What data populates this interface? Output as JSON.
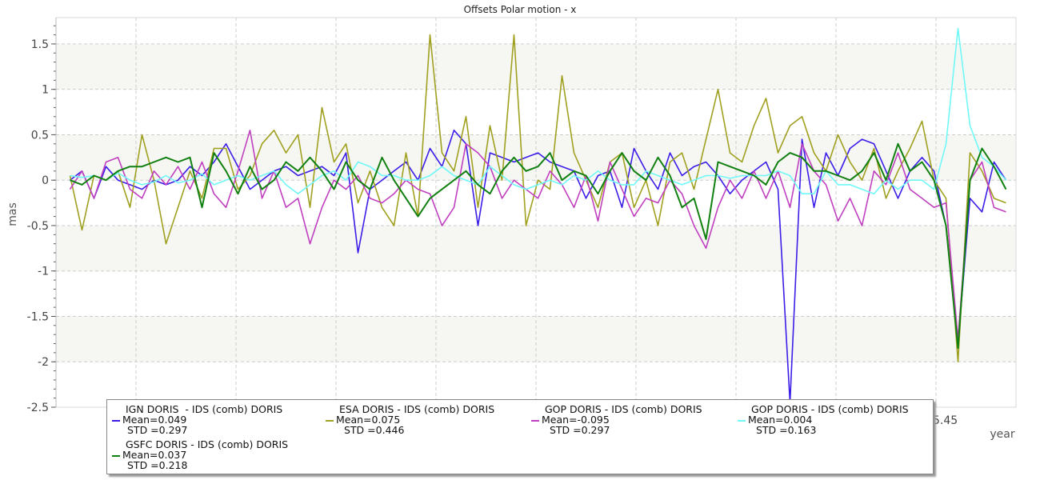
{
  "chart_data": {
    "type": "line",
    "title": "Offsets Polar motion - x",
    "xlabel": "year",
    "ylabel": "mas",
    "xlim": [
      2015.01,
      2015.49
    ],
    "ylim": [
      -2.5,
      1.79
    ],
    "grid": true,
    "legend_position": "bottom",
    "y_ticks": [
      "1.5",
      "1",
      "0.5",
      "0",
      "-0.5",
      "-1",
      "-1.5",
      "-2",
      "-2.5"
    ],
    "x_ticks_visible": [
      "5.45"
    ],
    "x": [
      2015.017,
      2015.023,
      2015.029,
      2015.035,
      2015.041,
      2015.047,
      2015.053,
      2015.059,
      2015.065,
      2015.071,
      2015.077,
      2015.083,
      2015.089,
      2015.095,
      2015.101,
      2015.107,
      2015.113,
      2015.119,
      2015.125,
      2015.131,
      2015.137,
      2015.143,
      2015.149,
      2015.155,
      2015.161,
      2015.167,
      2015.173,
      2015.179,
      2015.185,
      2015.191,
      2015.197,
      2015.203,
      2015.209,
      2015.215,
      2015.221,
      2015.227,
      2015.233,
      2015.239,
      2015.245,
      2015.251,
      2015.257,
      2015.263,
      2015.269,
      2015.275,
      2015.281,
      2015.287,
      2015.293,
      2015.299,
      2015.305,
      2015.311,
      2015.317,
      2015.323,
      2015.329,
      2015.335,
      2015.341,
      2015.347,
      2015.353,
      2015.359,
      2015.365,
      2015.371,
      2015.377,
      2015.383,
      2015.389,
      2015.395,
      2015.401,
      2015.407,
      2015.413,
      2015.419,
      2015.425,
      2015.431,
      2015.437,
      2015.443,
      2015.449,
      2015.455,
      2015.461,
      2015.467,
      2015.473,
      2015.479,
      2015.485
    ],
    "series": [
      {
        "name": "IGN DORIS  - IDS (comb) DORIS",
        "mean": "Mean=0.049",
        "std": "STD =0.297",
        "color": "#3a1ee8",
        "values": [
          0,
          0.1,
          -0.2,
          0.15,
          0,
          -0.05,
          -0.1,
          0,
          -0.05,
          0,
          0.15,
          0.05,
          0.2,
          0.4,
          0.15,
          -0.1,
          0,
          0.1,
          0.15,
          0.05,
          0.1,
          0.15,
          0.05,
          0.3,
          -0.8,
          -0.1,
          0,
          0.1,
          0.2,
          0,
          0.35,
          0.15,
          0.55,
          0.4,
          -0.5,
          0.3,
          0.25,
          0.2,
          0.25,
          0.3,
          0.2,
          0.15,
          0.1,
          -0.2,
          0.05,
          0.1,
          -0.3,
          0.35,
          0.1,
          -0.1,
          0.3,
          0.05,
          0.15,
          0.2,
          0.05,
          -0.15,
          0,
          0.1,
          0.2,
          -0.1,
          -2.45,
          0.45,
          -0.3,
          0.3,
          0.05,
          0.35,
          0.45,
          0.4,
          0.1,
          -0.2,
          0.1,
          0.25,
          0.1,
          -0.5,
          -1.8,
          -0.2,
          -0.35,
          0.2,
          0
        ]
      },
      {
        "name": "ESA DORIS - IDS (comb) DORIS",
        "mean": "Mean=0.075",
        "std": " STD =0.446",
        "color": "#a0a020",
        "values": [
          0.05,
          -0.55,
          0.05,
          0,
          0.1,
          -0.3,
          0.5,
          0,
          -0.7,
          -0.3,
          0.1,
          -0.2,
          0.35,
          0.35,
          -0.1,
          0.05,
          0.4,
          0.55,
          0.3,
          0.5,
          -0.3,
          0.8,
          0.2,
          0.4,
          -0.25,
          0.1,
          -0.3,
          -0.5,
          0.3,
          -0.4,
          1.6,
          0.3,
          0.1,
          0.7,
          -0.3,
          0.6,
          0,
          1.6,
          -0.5,
          0,
          -0.1,
          1.15,
          0.3,
          0,
          -0.3,
          0.2,
          0.3,
          -0.3,
          0,
          -0.5,
          0.2,
          0.3,
          -0.1,
          0.45,
          1,
          0.3,
          0.2,
          0.6,
          0.9,
          0.3,
          0.6,
          0.7,
          0.3,
          0.1,
          0.5,
          0.2,
          0,
          0.35,
          -0.2,
          0.1,
          0.35,
          0.65,
          0,
          -0.2,
          -2,
          0.3,
          0.1,
          -0.2,
          -0.25
        ]
      },
      {
        "name": "GOP DORIS - IDS (comb) DORIS",
        "mean": "Mean=-0.095",
        "std": " STD =0.297",
        "color": "#c040c0",
        "values": [
          -0.1,
          0.1,
          -0.2,
          0.2,
          0.25,
          -0.1,
          -0.2,
          0.1,
          -0.05,
          0.15,
          -0.1,
          0.2,
          -0.15,
          -0.3,
          0.1,
          0.55,
          -0.2,
          0.1,
          -0.3,
          -0.2,
          -0.7,
          -0.3,
          0,
          -0.1,
          0.05,
          -0.2,
          -0.25,
          -0.15,
          0,
          -0.1,
          -0.15,
          -0.5,
          -0.3,
          0.4,
          0.3,
          0.15,
          -0.2,
          0,
          -0.1,
          -0.2,
          0.1,
          -0.05,
          -0.3,
          0.05,
          -0.45,
          0.2,
          -0.1,
          -0.4,
          -0.2,
          -0.25,
          0,
          -0.15,
          -0.5,
          -0.75,
          -0.3,
          0,
          -0.2,
          0.1,
          -0.2,
          0.1,
          -0.3,
          0.4,
          0.1,
          -0.05,
          -0.45,
          -0.2,
          -0.5,
          0.1,
          -0.05,
          0.3,
          -0.1,
          -0.2,
          -0.3,
          -0.25,
          -1.75,
          0,
          0.2,
          -0.3,
          -0.35
        ]
      },
      {
        "name": "GOP DORIS - IDS (comb) DORIS",
        "mean": "Mean=0.004",
        "std": " STD =0.163",
        "color": "#70f8f8",
        "values": [
          0.05,
          0.03,
          0.05,
          0,
          0.08,
          0,
          -0.05,
          -0.02,
          0.05,
          -0.03,
          0,
          0.07,
          -0.05,
          0,
          0.05,
          0,
          0.05,
          0.1,
          -0.05,
          -0.15,
          -0.05,
          0.05,
          0.1,
          0,
          0.2,
          0.15,
          0.05,
          0.05,
          0,
          0,
          0.05,
          0.15,
          0.05,
          0,
          -0.05,
          0.15,
          0.05,
          -0.05,
          -0.1,
          -0.05,
          0,
          -0.05,
          0.05,
          0,
          0.1,
          0,
          -0.05,
          -0.05,
          0.1,
          0.05,
          0,
          -0.05,
          0,
          0.05,
          0.05,
          0.02,
          0.05,
          0.05,
          0.05,
          0.1,
          0.05,
          -0.15,
          -0.15,
          0.1,
          -0.05,
          -0.05,
          -0.1,
          -0.15,
          0,
          -0.1,
          0,
          0,
          -0.1,
          0.4,
          1.67,
          0.6,
          0.25,
          0.15,
          0
        ]
      },
      {
        "name": "GSFC DORIS - IDS (comb) DORIS",
        "mean": "Mean=0.037",
        "std": "STD =0.218",
        "color": "#108010",
        "values": [
          0,
          -0.05,
          0.05,
          0,
          0.1,
          0.15,
          0.15,
          0.2,
          0.25,
          0.2,
          0.25,
          -0.3,
          0.3,
          0.1,
          -0.15,
          0.15,
          -0.1,
          0,
          0.2,
          0.1,
          0.25,
          0.1,
          -0.1,
          0.2,
          0,
          -0.1,
          0.25,
          0,
          -0.2,
          -0.4,
          -0.2,
          -0.1,
          0,
          0.1,
          -0.05,
          -0.15,
          0.1,
          0.25,
          0.1,
          0.15,
          0.3,
          0,
          0.1,
          0.05,
          -0.15,
          0.1,
          0.3,
          0.1,
          0,
          0.25,
          0.05,
          -0.3,
          -0.2,
          -0.65,
          0.2,
          0.15,
          0.1,
          0.05,
          -0.05,
          0.2,
          0.3,
          0.25,
          0.1,
          0.1,
          0.05,
          0,
          0.1,
          0.3,
          0,
          0.4,
          0.1,
          0.2,
          0,
          -0.5,
          -1.85,
          0,
          0.35,
          0.15,
          -0.1
        ]
      }
    ]
  }
}
